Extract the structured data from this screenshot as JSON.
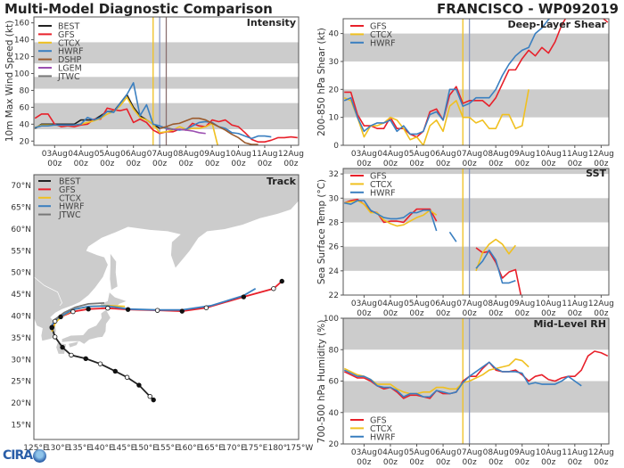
{
  "header": {
    "title": "Multi-Model Diagnostic Comparison",
    "storm": "FRANCISCO - WP092019"
  },
  "logo": {
    "text": "CIRA"
  },
  "colors": {
    "BEST": "#222222",
    "GFS": "#e8202a",
    "CTCX": "#f0c020",
    "HWRF": "#3a7fc0",
    "DSHP": "#9b5a2c",
    "LGEM": "#9b4fb0",
    "JTWC": "#777777",
    "band": "#cccccc",
    "land": "#cccccc"
  },
  "times": [
    "02Aug06",
    "02Aug12",
    "02Aug18",
    "03Aug00",
    "03Aug06",
    "03Aug12",
    "03Aug18",
    "04Aug00",
    "04Aug06",
    "04Aug12",
    "04Aug18",
    "05Aug00",
    "05Aug06",
    "05Aug12",
    "05Aug18",
    "06Aug00",
    "06Aug06",
    "06Aug12",
    "06Aug18",
    "07Aug00",
    "07Aug06",
    "07Aug12",
    "07Aug18",
    "08Aug00",
    "08Aug06",
    "08Aug12",
    "08Aug18",
    "09Aug00",
    "09Aug06",
    "09Aug12",
    "09Aug18",
    "10Aug00",
    "10Aug06",
    "10Aug12",
    "10Aug18",
    "11Aug00",
    "11Aug06",
    "11Aug12",
    "11Aug18",
    "12Aug00",
    "12Aug06"
  ],
  "xticks": [
    {
      "day": "03Aug",
      "hour": "00z",
      "t": "03Aug00"
    },
    {
      "day": "04Aug",
      "hour": "00z",
      "t": "04Aug00"
    },
    {
      "day": "05Aug",
      "hour": "00z",
      "t": "05Aug00"
    },
    {
      "day": "06Aug",
      "hour": "00z",
      "t": "06Aug00"
    },
    {
      "day": "07Aug",
      "hour": "00z",
      "t": "07Aug00"
    },
    {
      "day": "08Aug",
      "hour": "00z",
      "t": "08Aug00"
    },
    {
      "day": "09Aug",
      "hour": "00z",
      "t": "09Aug00"
    },
    {
      "day": "10Aug",
      "hour": "00z",
      "t": "10Aug00"
    },
    {
      "day": "11Aug",
      "hour": "00z",
      "t": "11Aug00"
    },
    {
      "day": "12Aug",
      "hour": "00z",
      "t": "12Aug00"
    }
  ],
  "xlim": [
    "02Aug05",
    "12Aug07"
  ],
  "chart_data": [
    {
      "type": "line",
      "title": "Intensity",
      "ylabel": "10m Max Wind Speed (kt)",
      "ylim": [
        15,
        167
      ],
      "yticks": [
        20,
        40,
        60,
        80,
        100,
        120,
        140,
        160
      ],
      "bands": [
        [
          34,
          65
        ],
        [
          82,
          96
        ],
        [
          112,
          137
        ]
      ],
      "vlines": [
        {
          "t": "06Aug18",
          "color": "#f0c020"
        },
        {
          "t": "07Aug00",
          "color": "#8c9ac4"
        },
        {
          "t": "07Aug06",
          "color": "#8a7070"
        }
      ],
      "legend": "top-left",
      "series": [
        {
          "name": "BEST",
          "values": [
            35,
            40,
            40,
            40,
            40,
            40,
            40,
            45,
            45,
            45,
            50,
            55,
            55,
            65,
            75,
            60,
            50,
            45,
            40,
            35
          ]
        },
        {
          "name": "GFS",
          "values": [
            47,
            52,
            52,
            40,
            37,
            38,
            37,
            39,
            40,
            46,
            46,
            59,
            57,
            56,
            58,
            42,
            46,
            42,
            33,
            29,
            31,
            31,
            34,
            33,
            41,
            38,
            37,
            45,
            43,
            45,
            39,
            37,
            30,
            22,
            19,
            19,
            21,
            24,
            24,
            25,
            24
          ]
        },
        {
          "name": "CTCX",
          "values": [
            36,
            39,
            39,
            39,
            39,
            39,
            39,
            40,
            42,
            44,
            47,
            52,
            55,
            62,
            72,
            58,
            48,
            45,
            40,
            30,
            31,
            33,
            37,
            34,
            35,
            35,
            37,
            41,
            10
          ]
        },
        {
          "name": "HWRF",
          "values": [
            36,
            38,
            38,
            39,
            39,
            39,
            39,
            40,
            48,
            45,
            48,
            55,
            54,
            65,
            75,
            89,
            50,
            63,
            40,
            38,
            35,
            34,
            33,
            34,
            38,
            42,
            43,
            42,
            37,
            35,
            30,
            29,
            26,
            23,
            26,
            26,
            25
          ]
        },
        {
          "name": "DSHP",
          "values": [
            null,
            null,
            null,
            null,
            null,
            null,
            null,
            null,
            null,
            null,
            null,
            null,
            null,
            null,
            null,
            null,
            null,
            null,
            null,
            35,
            37,
            40,
            41,
            44,
            47,
            47,
            45,
            41,
            37,
            33,
            28,
            24,
            18,
            16,
            16
          ]
        },
        {
          "name": "LGEM",
          "values": [
            null,
            null,
            null,
            null,
            null,
            null,
            null,
            null,
            null,
            null,
            null,
            null,
            null,
            null,
            null,
            null,
            null,
            null,
            null,
            null,
            34,
            34,
            34,
            33,
            32,
            30,
            29
          ]
        },
        {
          "name": "JTWC",
          "values": [
            null,
            null,
            null,
            null,
            null,
            null,
            null,
            null,
            null,
            null,
            null,
            null,
            null,
            null,
            null,
            null,
            null,
            null,
            null,
            null,
            36,
            34
          ]
        }
      ]
    },
    {
      "type": "line",
      "title": "Deep-Layer Shear",
      "ylabel": "200-850 hPa Shear (kt)",
      "ylim": [
        0,
        45.3
      ],
      "yticks": [
        0,
        10,
        20,
        30,
        40
      ],
      "bands": [
        [
          10,
          20
        ],
        [
          30,
          40
        ]
      ],
      "vlines": [
        {
          "t": "06Aug18",
          "color": "#f0c020"
        },
        {
          "t": "07Aug00",
          "color": "#8c9ac4"
        }
      ],
      "legend": "top-left",
      "series": [
        {
          "name": "GFS",
          "values": [
            19,
            19,
            11,
            7,
            7,
            6,
            6,
            10,
            6,
            6,
            4,
            3,
            5,
            12,
            13,
            9,
            18,
            21,
            15,
            16,
            16,
            16,
            14,
            17,
            22,
            27,
            27,
            31,
            34,
            32,
            35,
            33,
            37,
            43,
            47,
            48,
            48,
            47,
            46,
            46,
            44
          ]
        },
        {
          "name": "CTCX",
          "values": [
            17,
            16,
            10,
            3,
            7,
            7,
            8,
            10,
            9,
            6,
            2,
            3,
            0,
            7,
            9,
            5,
            14,
            16,
            10,
            10,
            8,
            9,
            6,
            6,
            11,
            11,
            6,
            7,
            20
          ]
        },
        {
          "name": "HWRF",
          "values": [
            16,
            17,
            10,
            5,
            7,
            8,
            8,
            9,
            5,
            7,
            4,
            4,
            5,
            11,
            12,
            9,
            20,
            20,
            14,
            15,
            17,
            17,
            17,
            20,
            25,
            29,
            32,
            34,
            35,
            40,
            42,
            45,
            47
          ]
        }
      ]
    },
    {
      "type": "line",
      "title": "SST",
      "ylabel": "Sea Surface Temp (°C)",
      "ylim": [
        22,
        32.45
      ],
      "yticks": [
        22,
        24,
        26,
        28,
        30,
        32
      ],
      "bands": [
        [
          24,
          26
        ],
        [
          28,
          30
        ],
        [
          32,
          33
        ]
      ],
      "vlines": [
        {
          "t": "06Aug18",
          "color": "#f0c020"
        },
        {
          "t": "07Aug00",
          "color": "#8c9ac4"
        }
      ],
      "legend": "top-left",
      "series": [
        {
          "name": "GFS",
          "values": [
            29.6,
            29.8,
            29.9,
            29.5,
            28.9,
            28.8,
            28.0,
            28.1,
            28.1,
            28.0,
            28.6,
            29.1,
            29.1,
            29.1,
            28.1,
            null,
            null,
            null,
            null,
            null,
            25.9,
            25.5,
            25.6,
            24.7,
            23.4,
            23.9,
            24.1,
            21.5
          ]
        },
        {
          "name": "CTCX",
          "values": [
            29.6,
            29.7,
            29.8,
            29.5,
            28.8,
            28.8,
            28.2,
            27.9,
            27.7,
            27.8,
            28.1,
            28.4,
            28.6,
            29.0,
            28.6,
            null,
            null,
            null,
            null,
            null,
            24.0,
            25.5,
            26.2,
            26.6,
            26.2,
            25.4,
            26.1
          ]
        },
        {
          "name": "HWRF",
          "values": [
            29.6,
            29.5,
            29.8,
            29.8,
            29.0,
            28.7,
            28.4,
            28.3,
            28.3,
            28.4,
            28.8,
            28.8,
            29.0,
            29.0,
            27.3,
            null,
            27.2,
            26.4,
            null,
            null,
            24.2,
            24.8,
            25.7,
            24.9,
            23.0,
            23.0,
            23.2
          ]
        }
      ]
    },
    {
      "type": "line",
      "title": "Mid-Level RH",
      "ylabel": "700-500 hPa Humidity (%)",
      "ylim": [
        20,
        100
      ],
      "yticks": [
        20,
        40,
        60,
        80,
        100
      ],
      "bands": [
        [
          40,
          60
        ],
        [
          80,
          100
        ]
      ],
      "vlines": [
        {
          "t": "06Aug18",
          "color": "#f0c020"
        },
        {
          "t": "07Aug00",
          "color": "#8c9ac4"
        }
      ],
      "legend": "bottom-left",
      "series": [
        {
          "name": "GFS",
          "values": [
            66,
            64,
            62,
            62,
            60,
            57,
            55,
            56,
            53,
            49,
            51,
            51,
            50,
            49,
            54,
            52,
            52,
            53,
            60,
            63,
            63,
            68,
            72,
            67,
            66,
            66,
            67,
            64,
            60,
            63,
            64,
            61,
            60,
            62,
            63,
            63,
            67,
            76,
            79,
            78,
            76
          ]
        },
        {
          "name": "CTCX",
          "values": [
            68,
            66,
            64,
            63,
            61,
            58,
            58,
            58,
            55,
            53,
            52,
            52,
            53,
            53,
            56,
            56,
            55,
            55,
            59,
            60,
            62,
            64,
            67,
            68,
            69,
            70,
            74,
            73,
            69
          ]
        },
        {
          "name": "HWRF",
          "values": [
            67,
            65,
            63,
            63,
            61,
            57,
            56,
            56,
            54,
            50,
            52,
            52,
            50,
            50,
            54,
            53,
            52,
            53,
            59,
            63,
            66,
            69,
            72,
            68,
            66,
            66,
            66,
            65,
            58,
            59,
            58,
            58,
            58,
            60,
            63,
            60,
            57
          ]
        }
      ]
    },
    {
      "type": "map-track",
      "title": "Track",
      "xlim": [
        124.6,
        184.8
      ],
      "ylim": [
        11.6,
        72.5
      ],
      "lat_ticks": [
        "15°N",
        "20°N",
        "25°N",
        "30°N",
        "35°N",
        "40°N",
        "45°N",
        "50°N",
        "55°N",
        "60°N",
        "65°N",
        "70°N"
      ],
      "lat_values": [
        15,
        20,
        25,
        30,
        35,
        40,
        45,
        50,
        55,
        60,
        65,
        70
      ],
      "lon_ticks": [
        "125°E",
        "130°E",
        "135°E",
        "140°E",
        "145°E",
        "150°E",
        "155°E",
        "160°E",
        "165°E",
        "170°E",
        "175°E",
        "180°",
        "175°W"
      ],
      "lon_values": [
        125,
        130,
        135,
        140,
        145,
        150,
        155,
        160,
        165,
        170,
        175,
        180,
        185
      ],
      "legend": "top-left",
      "series": [
        {
          "name": "BEST",
          "points": [
            [
              151.8,
              20.7
            ],
            [
              151.0,
              21.5
            ],
            [
              148.5,
              24.1
            ],
            [
              145.8,
              25.9
            ],
            [
              143.1,
              27.3
            ],
            [
              139.7,
              29.0
            ],
            [
              136.4,
              30.2
            ],
            [
              133.1,
              31.0
            ],
            [
              131.1,
              32.8
            ],
            [
              129.4,
              35.2
            ],
            [
              128.7,
              37.3
            ]
          ]
        },
        {
          "name": "GFS",
          "points": [
            [
              128.7,
              37.4
            ],
            [
              129.4,
              38.8
            ],
            [
              130.7,
              39.8
            ],
            [
              133.5,
              41.0
            ],
            [
              137.0,
              41.6
            ],
            [
              141.4,
              41.8
            ],
            [
              146.0,
              41.5
            ],
            [
              152.7,
              41.3
            ],
            [
              158.3,
              41.1
            ],
            [
              163.8,
              41.9
            ],
            [
              172.3,
              44.4
            ],
            [
              179.1,
              46.3
            ],
            [
              181.0,
              48.0
            ]
          ]
        },
        {
          "name": "CTCX",
          "points": [
            [
              128.7,
              36.4
            ],
            [
              129.5,
              38.5
            ],
            [
              131.0,
              40.0
            ],
            [
              134.0,
              41.6
            ],
            [
              137.5,
              42.2
            ],
            [
              141.4,
              42.4
            ],
            [
              145.3,
              42.2
            ]
          ]
        },
        {
          "name": "HWRF",
          "points": [
            [
              128.7,
              37.9
            ],
            [
              130.0,
              39.5
            ],
            [
              133.5,
              41.5
            ],
            [
              137.0,
              42.2
            ],
            [
              141.4,
              42.3
            ],
            [
              146.0,
              41.6
            ],
            [
              152.7,
              41.4
            ],
            [
              158.3,
              41.4
            ],
            [
              165.0,
              42.4
            ],
            [
              172.3,
              44.7
            ],
            [
              175.0,
              46.3
            ]
          ]
        },
        {
          "name": "JTWC",
          "points": [
            [
              129.4,
              39.2
            ],
            [
              131.5,
              40.8
            ],
            [
              134.0,
              42.0
            ],
            [
              137.0,
              42.8
            ],
            [
              140.6,
              43.0
            ]
          ]
        }
      ]
    }
  ]
}
